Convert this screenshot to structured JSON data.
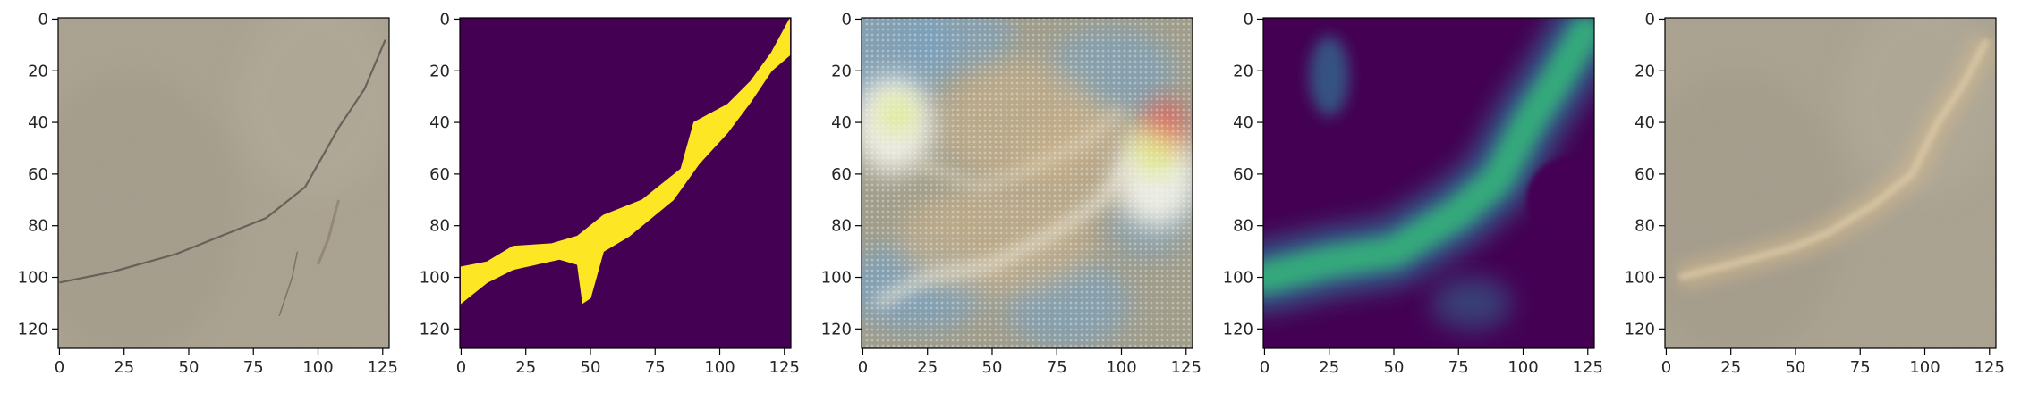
{
  "chart_data": [
    {
      "type": "heatmap",
      "panel": 1,
      "content": "rgb photo of concrete surface with thin crack",
      "colors": {
        "base": "#a9a08d",
        "dark": "#8c8573",
        "crack": "#5a5650"
      },
      "crack_path": [
        [
          0,
          102
        ],
        [
          20,
          98
        ],
        [
          45,
          91
        ],
        [
          65,
          83
        ],
        [
          80,
          77
        ],
        [
          95,
          65
        ],
        [
          108,
          42
        ],
        [
          118,
          27
        ],
        [
          126,
          8
        ]
      ],
      "xlim": [
        0,
        127
      ],
      "ylim": [
        127,
        0
      ],
      "xticks": [
        0,
        25,
        50,
        75,
        100,
        125
      ],
      "yticks": [
        0,
        20,
        40,
        60,
        80,
        100,
        120
      ],
      "xtick_labels": [
        "0",
        "25",
        "50",
        "75",
        "100",
        "125"
      ],
      "ytick_labels": [
        "0",
        "20",
        "40",
        "60",
        "80",
        "100",
        "120"
      ]
    },
    {
      "type": "heatmap",
      "panel": 2,
      "content": "binary crack mask (viridis colormap)",
      "colors": {
        "background": "#440154",
        "mask": "#fde725"
      },
      "mask_upper": [
        [
          0,
          96
        ],
        [
          10,
          94
        ],
        [
          20,
          88
        ],
        [
          35,
          87
        ],
        [
          45,
          84
        ],
        [
          55,
          76
        ],
        [
          70,
          70
        ],
        [
          85,
          58
        ],
        [
          90,
          40
        ],
        [
          103,
          33
        ],
        [
          112,
          24
        ],
        [
          120,
          13
        ],
        [
          127,
          0
        ]
      ],
      "mask_lower": [
        [
          127,
          14
        ],
        [
          120,
          20
        ],
        [
          112,
          32
        ],
        [
          103,
          44
        ],
        [
          92,
          56
        ],
        [
          82,
          70
        ],
        [
          65,
          84
        ],
        [
          55,
          90
        ],
        [
          50,
          108
        ],
        [
          47,
          110
        ],
        [
          45,
          95
        ],
        [
          38,
          93
        ],
        [
          20,
          97
        ],
        [
          10,
          102
        ],
        [
          0,
          110
        ]
      ],
      "xlim": [
        0,
        127
      ],
      "ylim": [
        127,
        0
      ],
      "xticks": [
        0,
        25,
        50,
        75,
        100,
        125
      ],
      "yticks": [
        0,
        20,
        40,
        60,
        80,
        100,
        120
      ],
      "xtick_labels": [
        "0",
        "25",
        "50",
        "75",
        "100",
        "125"
      ],
      "ytick_labels": [
        "0",
        "20",
        "40",
        "60",
        "80",
        "100",
        "120"
      ]
    },
    {
      "type": "heatmap",
      "panel": 3,
      "content": "noisy colorful activation / saliency visualization",
      "colors": {
        "base": "#9e9a86",
        "blue": "#6f9fc4",
        "tan": "#c7ad84",
        "white": "#f4f4ea",
        "red": "#ff3a3a",
        "green": "#d8f04a"
      },
      "xlim": [
        0,
        127
      ],
      "ylim": [
        127,
        0
      ],
      "xticks": [
        0,
        25,
        50,
        75,
        100,
        125
      ],
      "yticks": [
        0,
        20,
        40,
        60,
        80,
        100,
        120
      ],
      "xtick_labels": [
        "0",
        "25",
        "50",
        "75",
        "100",
        "125"
      ],
      "ytick_labels": [
        "0",
        "20",
        "40",
        "60",
        "80",
        "100",
        "120"
      ]
    },
    {
      "type": "heatmap",
      "panel": 4,
      "content": "predicted crack probability map (viridis colormap)",
      "colors": {
        "background": "#440154",
        "mid": "#31688e",
        "high": "#35b779",
        "peak": "#3fbc73"
      },
      "crack_path": [
        [
          0,
          100
        ],
        [
          25,
          94
        ],
        [
          50,
          90
        ],
        [
          60,
          84
        ],
        [
          75,
          75
        ],
        [
          90,
          62
        ],
        [
          102,
          40
        ],
        [
          112,
          25
        ],
        [
          124,
          5
        ]
      ],
      "xlim": [
        0,
        127
      ],
      "ylim": [
        127,
        0
      ],
      "xticks": [
        0,
        25,
        50,
        75,
        100,
        125
      ],
      "yticks": [
        0,
        20,
        40,
        60,
        80,
        100,
        120
      ],
      "xtick_labels": [
        "0",
        "25",
        "50",
        "75",
        "100",
        "125"
      ],
      "ytick_labels": [
        "0",
        "20",
        "40",
        "60",
        "80",
        "100",
        "120"
      ]
    },
    {
      "type": "heatmap",
      "panel": 5,
      "content": "overlay of activation on original photo",
      "colors": {
        "base": "#a9a08d",
        "overlay": "#d2b98e"
      },
      "crack_path": [
        [
          5,
          100
        ],
        [
          25,
          95
        ],
        [
          50,
          88
        ],
        [
          62,
          83
        ],
        [
          80,
          72
        ],
        [
          95,
          60
        ],
        [
          105,
          40
        ],
        [
          115,
          25
        ],
        [
          124,
          8
        ]
      ],
      "xlim": [
        0,
        127
      ],
      "ylim": [
        127,
        0
      ],
      "xticks": [
        0,
        25,
        50,
        75,
        100,
        125
      ],
      "yticks": [
        0,
        20,
        40,
        60,
        80,
        100,
        120
      ],
      "xtick_labels": [
        "0",
        "25",
        "50",
        "75",
        "100",
        "125"
      ],
      "ytick_labels": [
        "0",
        "20",
        "40",
        "60",
        "80",
        "100",
        "120"
      ]
    }
  ]
}
